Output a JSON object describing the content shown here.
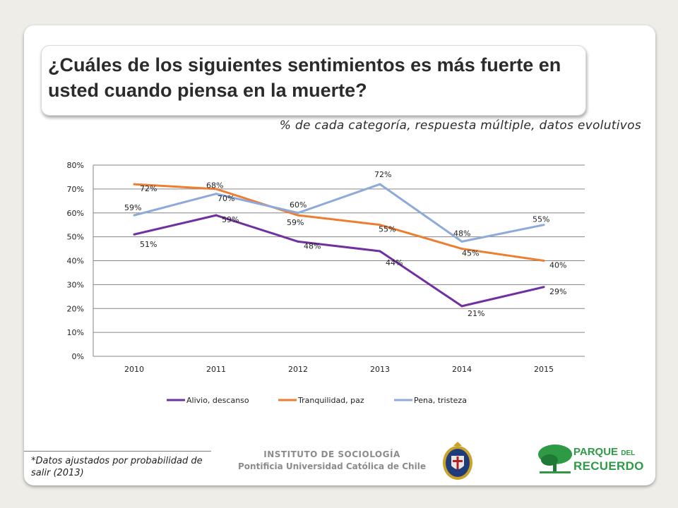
{
  "title": "¿Cuáles de los siguientes sentimientos es más fuerte en usted cuando piensa en la muerte?",
  "subtitle": "% de cada categoría, respuesta múltiple, datos evolutivos",
  "footnote": "*Datos ajustados por probabilidad de salir (2013)",
  "institution": {
    "line1": "INSTITUTO DE SOCIOLOGÍA",
    "line2": "Pontificia Universidad Católica de Chile"
  },
  "logo": {
    "word1": "PARQUE",
    "word2": "DEL",
    "word3": "RECUERDO"
  },
  "colors": {
    "alivio": "#7030a0",
    "tranquilidad": "#ed7d31",
    "pena": "#8eaadb"
  },
  "chart_data": {
    "type": "line",
    "categories": [
      "2010",
      "2011",
      "2012",
      "2013",
      "2014",
      "2015"
    ],
    "ylim": [
      0,
      80
    ],
    "yticks": [
      "0%",
      "10%",
      "20%",
      "30%",
      "40%",
      "50%",
      "60%",
      "70%",
      "80%"
    ],
    "grid": true,
    "legend_position": "bottom",
    "series": [
      {
        "name": "Alivio, descanso",
        "values": [
          51,
          59,
          48,
          44,
          21,
          29
        ],
        "labels": [
          "51%",
          "59%",
          "48%",
          "44%",
          "21%",
          "29%"
        ],
        "color": "#7030a0"
      },
      {
        "name": "Tranquilidad, paz",
        "values": [
          72,
          70,
          59,
          55,
          45,
          40
        ],
        "labels": [
          "72%",
          "70%",
          "59%",
          "55%",
          "45%",
          "40%"
        ],
        "color": "#ed7d31"
      },
      {
        "name": "Pena, tristeza",
        "values": [
          59,
          68,
          60,
          72,
          48,
          55
        ],
        "labels": [
          "59%",
          "68%",
          "60%",
          "72%",
          "48%",
          "55%"
        ],
        "color": "#8eaadb"
      }
    ]
  }
}
